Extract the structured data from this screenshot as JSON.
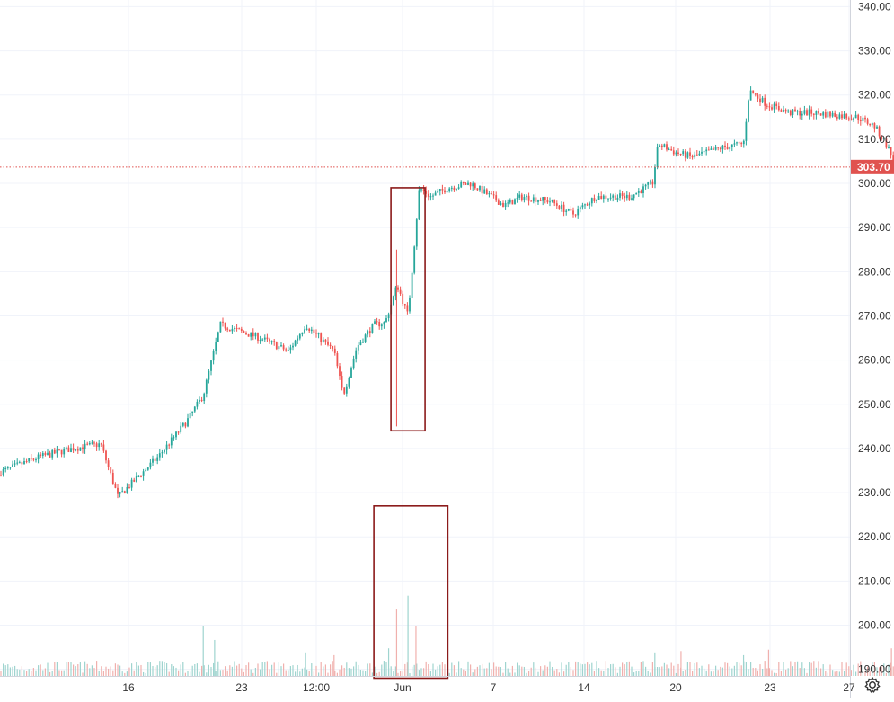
{
  "chart_data": {
    "type": "candlestick",
    "title": "",
    "y_ticks": [
      "340.00",
      "330.00",
      "320.00",
      "310.00",
      "300.00",
      "290.00",
      "280.00",
      "270.00",
      "260.00",
      "250.00",
      "240.00",
      "230.00",
      "220.00",
      "210.00",
      "200.00",
      "190.00"
    ],
    "x_ticks": [
      "16",
      "23",
      "12:00",
      "Jun",
      "7",
      "14",
      "20",
      "23",
      "27"
    ],
    "ylim": [
      188,
      341
    ],
    "last_price": 303.7,
    "last_price_label": "303.70",
    "colors": {
      "up": "#26a69a",
      "down": "#ef5350",
      "up_volume": "#9fd4cf",
      "down_volume": "#f0b0ad",
      "box": "#8b1a1a",
      "price_line": "#e0524f"
    },
    "grid": true,
    "price_anchors": [
      [
        0,
        234
      ],
      [
        0.04,
        238
      ],
      [
        0.07,
        240
      ],
      [
        0.095,
        241
      ],
      [
        0.11,
        229
      ],
      [
        0.145,
        238
      ],
      [
        0.17,
        246
      ],
      [
        0.185,
        252
      ],
      [
        0.2,
        268
      ],
      [
        0.235,
        265
      ],
      [
        0.26,
        262
      ],
      [
        0.275,
        268
      ],
      [
        0.3,
        262
      ],
      [
        0.308,
        252
      ],
      [
        0.32,
        263
      ],
      [
        0.335,
        268
      ],
      [
        0.345,
        268.5
      ],
      [
        0.3555,
        277
      ],
      [
        0.365,
        270
      ],
      [
        0.375,
        299
      ],
      [
        0.385,
        297
      ],
      [
        0.4,
        299
      ],
      [
        0.42,
        300
      ],
      [
        0.45,
        295
      ],
      [
        0.465,
        297
      ],
      [
        0.49,
        296
      ],
      [
        0.51,
        293
      ],
      [
        0.53,
        297
      ],
      [
        0.56,
        297
      ],
      [
        0.58,
        300
      ],
      [
        0.585,
        309
      ],
      [
        0.6,
        307
      ],
      [
        0.615,
        306
      ],
      [
        0.64,
        308
      ],
      [
        0.66,
        309
      ],
      [
        0.665,
        321
      ],
      [
        0.68,
        318
      ],
      [
        0.7,
        316
      ],
      [
        0.72,
        316
      ],
      [
        0.76,
        315
      ],
      [
        0.775,
        313
      ],
      [
        0.785,
        309
      ],
      [
        0.795,
        303.7
      ]
    ],
    "highlight_boxes": [
      {
        "name": "price-spike-box",
        "t0": 0.35,
        "t1": 0.38,
        "y_top": 299,
        "y_bottom": 244
      },
      {
        "name": "volume-spike-box",
        "t0": 0.335,
        "t1": 0.4,
        "y_top": 227,
        "y_bottom": 188
      }
    ],
    "spike_wick": {
      "t": 0.355,
      "low": 245,
      "high": 285
    },
    "volume_spikes": [
      {
        "t": 0.185,
        "h": 0.36,
        "up": true
      },
      {
        "t": 0.195,
        "h": 0.26,
        "up": true
      },
      {
        "t": 0.355,
        "h": 0.48,
        "up": false
      },
      {
        "t": 0.365,
        "h": 0.58,
        "up": true
      },
      {
        "t": 0.372,
        "h": 0.36,
        "up": false
      },
      {
        "t": 0.348,
        "h": 0.2,
        "up": true
      },
      {
        "t": 0.582,
        "h": 0.17,
        "up": true
      },
      {
        "t": 0.605,
        "h": 0.18,
        "up": false
      },
      {
        "t": 0.682,
        "h": 0.19,
        "up": false
      },
      {
        "t": 0.79,
        "h": 0.2,
        "up": false
      },
      {
        "t": 0.66,
        "h": 0.15,
        "up": true
      },
      {
        "t": 0.275,
        "h": 0.17,
        "up": true
      },
      {
        "t": 0.3,
        "h": 0.15,
        "up": false
      }
    ]
  },
  "icons": {
    "settings": "gear-icon"
  }
}
